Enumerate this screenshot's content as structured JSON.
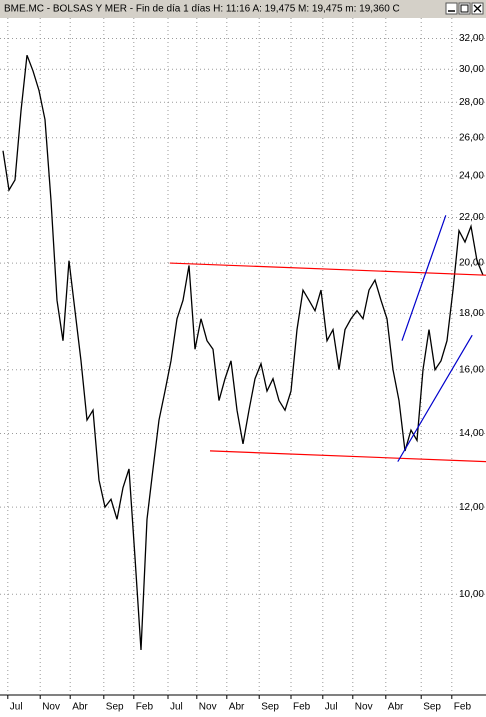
{
  "chart_data": {
    "type": "line",
    "title": "BME.MC - BOLSAS Y MER - Fin de día 1 días  H: 11:16  A: 19,475  M: 19,475  m: 19,360  C",
    "color": "#000000",
    "values": [
      25.3,
      23.3,
      23.8,
      27.5,
      30.9,
      29.9,
      28.7,
      27.0,
      22.8,
      18.5,
      17.0,
      20.1,
      18.1,
      16.3,
      14.4,
      14.7,
      12.7,
      12.0,
      12.2,
      11.7,
      12.5,
      13.0,
      10.8,
      8.9,
      11.7,
      13.0,
      14.4,
      15.3,
      16.3,
      17.8,
      18.5,
      19.9,
      16.7,
      17.8,
      17.0,
      16.7,
      15.0,
      15.7,
      16.3,
      14.7,
      13.7,
      14.7,
      15.7,
      16.2,
      15.3,
      15.7,
      15.0,
      14.7,
      15.3,
      17.4,
      18.9,
      18.5,
      18.1,
      18.9,
      17.0,
      17.4,
      16.0,
      17.4,
      17.8,
      18.1,
      17.8,
      18.9,
      19.3,
      18.5,
      17.8,
      16.0,
      15.0,
      13.5,
      14.1,
      13.8,
      16.0,
      17.4,
      16.0,
      16.3,
      17.0,
      18.9,
      21.4,
      20.9,
      21.6,
      20.1,
      19.5
    ],
    "xlim": [
      -0.5,
      80.5
    ],
    "xticks": [
      {
        "value": 0.8,
        "label": "Jul"
      },
      {
        "value": 6.2,
        "label": "Nov"
      },
      {
        "value": 11.2,
        "label": "Abr"
      },
      {
        "value": 16.8,
        "label": "Sep"
      },
      {
        "value": 21.8,
        "label": "Feb"
      },
      {
        "value": 27.5,
        "label": "Jul"
      },
      {
        "value": 32.3,
        "label": "Nov"
      },
      {
        "value": 37.3,
        "label": "Abr"
      },
      {
        "value": 42.7,
        "label": "Sep"
      },
      {
        "value": 48,
        "label": "Feb"
      },
      {
        "value": 53.3,
        "label": "Jul"
      },
      {
        "value": 58.3,
        "label": "Nov"
      },
      {
        "value": 63.8,
        "label": "Abr"
      },
      {
        "value": 69.7,
        "label": "Sep"
      },
      {
        "value": 74.8,
        "label": "Feb"
      }
    ],
    "ylim": [
      8.1,
      33.4
    ],
    "log_scale": true,
    "yticks": [
      {
        "value": 10,
        "label": "10,00"
      },
      {
        "value": 12,
        "label": "12,00"
      },
      {
        "value": 14,
        "label": "14,00"
      },
      {
        "value": 16,
        "label": "16,00"
      },
      {
        "value": 18,
        "label": "18,00"
      },
      {
        "value": 20,
        "label": "20,00"
      },
      {
        "value": 22,
        "label": "22,00"
      },
      {
        "value": 24,
        "label": "24,00"
      },
      {
        "value": 26,
        "label": "26,00"
      },
      {
        "value": 28,
        "label": "28,00"
      },
      {
        "value": 30,
        "label": "30,00"
      },
      {
        "value": 32,
        "label": "32,00"
      }
    ],
    "grid": true,
    "trendlines": [
      {
        "color": "#ff0000",
        "x": [
          27.8,
          80.5
        ],
        "values": [
          20.0,
          19.5
        ]
      },
      {
        "color": "#ff0000",
        "x": [
          34.5,
          80.5
        ],
        "values": [
          13.5,
          13.2
        ]
      },
      {
        "color": "#0000cc",
        "x": [
          66.5,
          73.8
        ],
        "values": [
          17.0,
          22.1
        ]
      },
      {
        "color": "#0000cc",
        "x": [
          65.8,
          78.2
        ],
        "values": [
          13.2,
          17.2
        ]
      }
    ]
  }
}
